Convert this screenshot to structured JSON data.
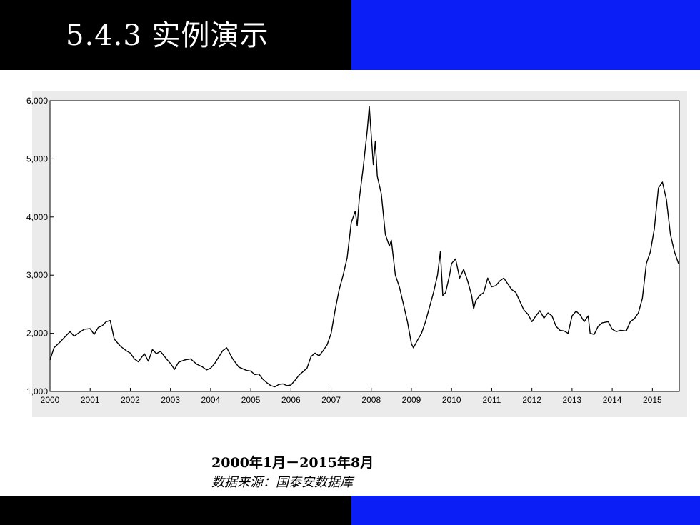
{
  "slide": {
    "title": "5.4.3 实例演示",
    "caption_range": "2000年1月－2015年8月",
    "caption_source": "数据来源：国泰安数据库",
    "colors": {
      "dark_band": "#000000",
      "blue_band": "#0a1ef5",
      "plot_bg": "#ebebeb",
      "line": "#000000"
    }
  },
  "chart_data": {
    "type": "line",
    "title": "",
    "xlabel": "",
    "ylabel": "",
    "xlim": [
      2000,
      2015.67
    ],
    "ylim": [
      1000,
      6000
    ],
    "grid": false,
    "x_ticks": [
      "2000",
      "2001",
      "2002",
      "2003",
      "2004",
      "2005",
      "2006",
      "2007",
      "2008",
      "2009",
      "2010",
      "2011",
      "2012",
      "2013",
      "2014",
      "2015"
    ],
    "y_ticks": [
      "1,000",
      "2,000",
      "3,000",
      "4,000",
      "5,000",
      "6,000"
    ],
    "series": [
      {
        "values": [
          [
            2000.0,
            1540
          ],
          [
            2000.1,
            1750
          ],
          [
            2000.25,
            1850
          ],
          [
            2000.4,
            1960
          ],
          [
            2000.5,
            2030
          ],
          [
            2000.6,
            1950
          ],
          [
            2000.7,
            2000
          ],
          [
            2000.85,
            2070
          ],
          [
            2001.0,
            2080
          ],
          [
            2001.1,
            1980
          ],
          [
            2001.2,
            2100
          ],
          [
            2001.3,
            2130
          ],
          [
            2001.4,
            2200
          ],
          [
            2001.5,
            2220
          ],
          [
            2001.6,
            1900
          ],
          [
            2001.75,
            1780
          ],
          [
            2001.9,
            1700
          ],
          [
            2002.0,
            1660
          ],
          [
            2002.1,
            1560
          ],
          [
            2002.2,
            1510
          ],
          [
            2002.35,
            1650
          ],
          [
            2002.45,
            1520
          ],
          [
            2002.55,
            1720
          ],
          [
            2002.65,
            1650
          ],
          [
            2002.75,
            1690
          ],
          [
            2002.9,
            1560
          ],
          [
            2003.0,
            1480
          ],
          [
            2003.1,
            1380
          ],
          [
            2003.2,
            1500
          ],
          [
            2003.35,
            1540
          ],
          [
            2003.5,
            1560
          ],
          [
            2003.65,
            1470
          ],
          [
            2003.8,
            1420
          ],
          [
            2003.9,
            1370
          ],
          [
            2004.0,
            1400
          ],
          [
            2004.1,
            1480
          ],
          [
            2004.2,
            1590
          ],
          [
            2004.3,
            1700
          ],
          [
            2004.4,
            1750
          ],
          [
            2004.55,
            1560
          ],
          [
            2004.7,
            1420
          ],
          [
            2004.8,
            1390
          ],
          [
            2004.9,
            1360
          ],
          [
            2005.0,
            1350
          ],
          [
            2005.1,
            1290
          ],
          [
            2005.2,
            1300
          ],
          [
            2005.3,
            1210
          ],
          [
            2005.4,
            1150
          ],
          [
            2005.5,
            1100
          ],
          [
            2005.6,
            1080
          ],
          [
            2005.7,
            1120
          ],
          [
            2005.8,
            1130
          ],
          [
            2005.9,
            1100
          ],
          [
            2006.0,
            1110
          ],
          [
            2006.1,
            1190
          ],
          [
            2006.2,
            1280
          ],
          [
            2006.3,
            1340
          ],
          [
            2006.4,
            1400
          ],
          [
            2006.5,
            1600
          ],
          [
            2006.6,
            1660
          ],
          [
            2006.7,
            1610
          ],
          [
            2006.8,
            1700
          ],
          [
            2006.9,
            1800
          ],
          [
            2007.0,
            2000
          ],
          [
            2007.1,
            2400
          ],
          [
            2007.2,
            2750
          ],
          [
            2007.3,
            3000
          ],
          [
            2007.4,
            3300
          ],
          [
            2007.5,
            3900
          ],
          [
            2007.6,
            4100
          ],
          [
            2007.65,
            3850
          ],
          [
            2007.7,
            4300
          ],
          [
            2007.8,
            4850
          ],
          [
            2007.9,
            5500
          ],
          [
            2007.95,
            5900
          ],
          [
            2008.0,
            5400
          ],
          [
            2008.05,
            4900
          ],
          [
            2008.1,
            5300
          ],
          [
            2008.15,
            4700
          ],
          [
            2008.25,
            4400
          ],
          [
            2008.35,
            3700
          ],
          [
            2008.45,
            3500
          ],
          [
            2008.5,
            3600
          ],
          [
            2008.6,
            3000
          ],
          [
            2008.7,
            2800
          ],
          [
            2008.8,
            2500
          ],
          [
            2008.9,
            2200
          ],
          [
            2009.0,
            1820
          ],
          [
            2009.05,
            1750
          ],
          [
            2009.15,
            1880
          ],
          [
            2009.25,
            2000
          ],
          [
            2009.35,
            2200
          ],
          [
            2009.45,
            2450
          ],
          [
            2009.55,
            2700
          ],
          [
            2009.65,
            3000
          ],
          [
            2009.72,
            3400
          ],
          [
            2009.78,
            2650
          ],
          [
            2009.85,
            2700
          ],
          [
            2009.95,
            3000
          ],
          [
            2010.0,
            3200
          ],
          [
            2010.1,
            3280
          ],
          [
            2010.2,
            2950
          ],
          [
            2010.3,
            3100
          ],
          [
            2010.4,
            2900
          ],
          [
            2010.5,
            2650
          ],
          [
            2010.55,
            2420
          ],
          [
            2010.6,
            2560
          ],
          [
            2010.7,
            2650
          ],
          [
            2010.8,
            2700
          ],
          [
            2010.9,
            2950
          ],
          [
            2011.0,
            2800
          ],
          [
            2011.1,
            2820
          ],
          [
            2011.2,
            2900
          ],
          [
            2011.3,
            2950
          ],
          [
            2011.4,
            2850
          ],
          [
            2011.5,
            2750
          ],
          [
            2011.6,
            2700
          ],
          [
            2011.7,
            2550
          ],
          [
            2011.8,
            2400
          ],
          [
            2011.9,
            2330
          ],
          [
            2012.0,
            2200
          ],
          [
            2012.1,
            2300
          ],
          [
            2012.2,
            2390
          ],
          [
            2012.3,
            2260
          ],
          [
            2012.4,
            2350
          ],
          [
            2012.5,
            2300
          ],
          [
            2012.6,
            2120
          ],
          [
            2012.7,
            2050
          ],
          [
            2012.8,
            2040
          ],
          [
            2012.9,
            2000
          ],
          [
            2013.0,
            2300
          ],
          [
            2013.1,
            2380
          ],
          [
            2013.2,
            2320
          ],
          [
            2013.3,
            2200
          ],
          [
            2013.4,
            2300
          ],
          [
            2013.45,
            2000
          ],
          [
            2013.55,
            1980
          ],
          [
            2013.65,
            2120
          ],
          [
            2013.75,
            2180
          ],
          [
            2013.9,
            2200
          ],
          [
            2014.0,
            2070
          ],
          [
            2014.1,
            2030
          ],
          [
            2014.2,
            2050
          ],
          [
            2014.35,
            2040
          ],
          [
            2014.45,
            2200
          ],
          [
            2014.55,
            2250
          ],
          [
            2014.65,
            2350
          ],
          [
            2014.75,
            2600
          ],
          [
            2014.85,
            3200
          ],
          [
            2014.95,
            3400
          ],
          [
            2015.05,
            3800
          ],
          [
            2015.15,
            4500
          ],
          [
            2015.25,
            4600
          ],
          [
            2015.35,
            4300
          ],
          [
            2015.45,
            3700
          ],
          [
            2015.55,
            3400
          ],
          [
            2015.65,
            3200
          ]
        ]
      }
    ]
  }
}
